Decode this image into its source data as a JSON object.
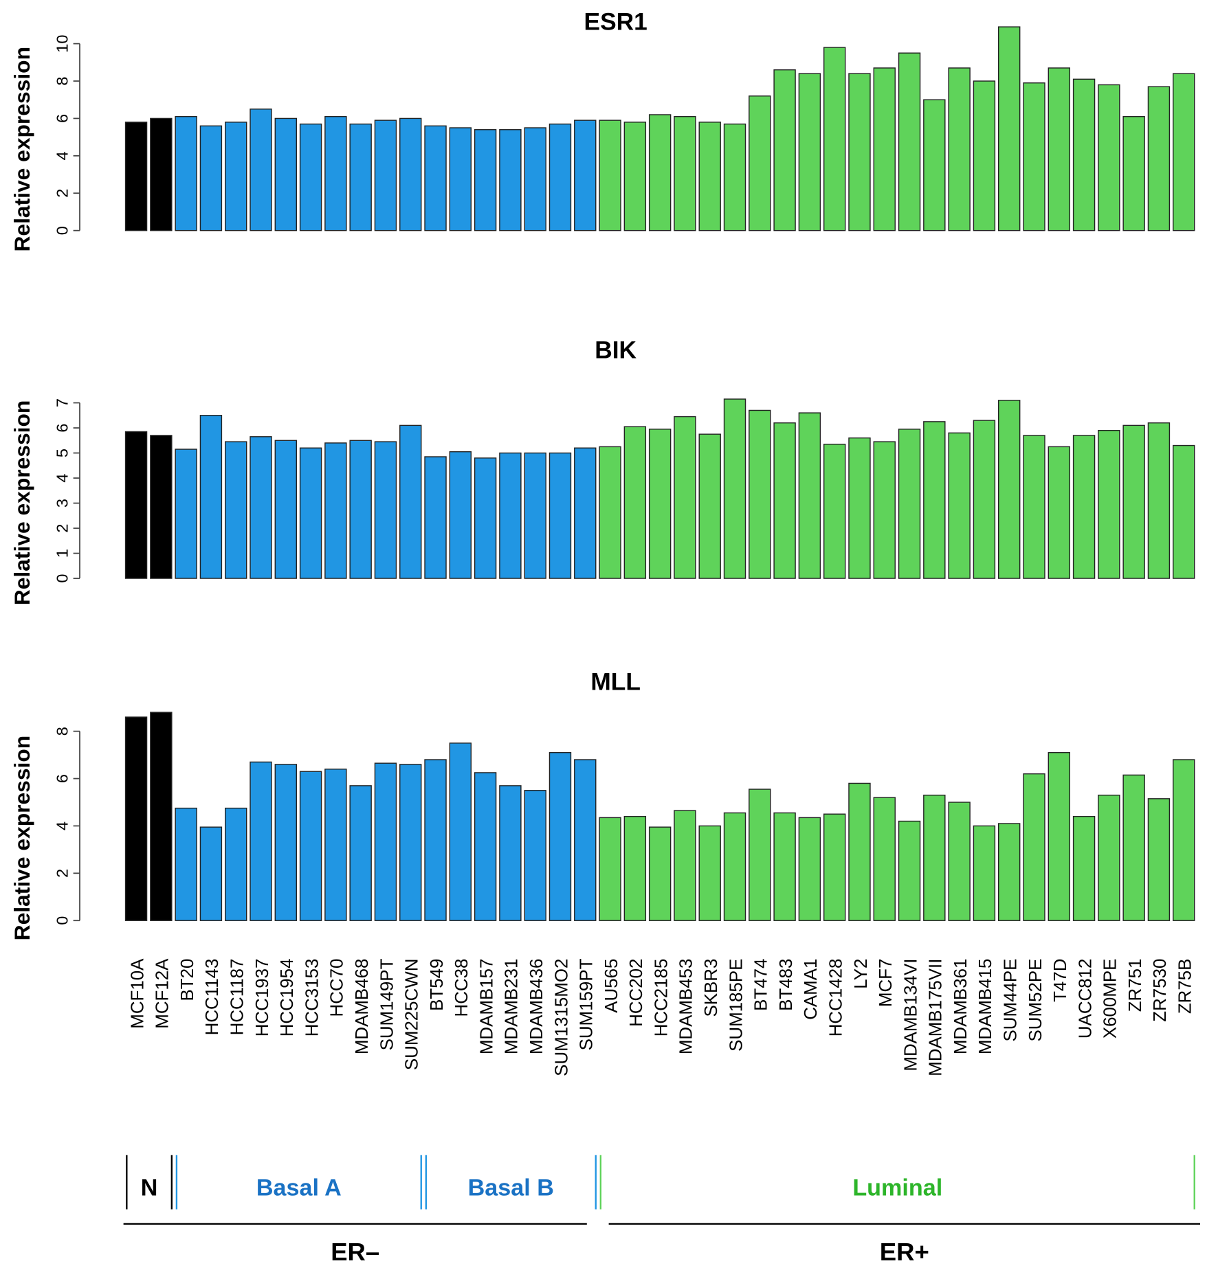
{
  "chart_data": {
    "type": "bar",
    "ylabel": "Relative expression",
    "categories": [
      "MCF10A",
      "MCF12A",
      "BT20",
      "HCC1143",
      "HCC1187",
      "HCC1937",
      "HCC1954",
      "HCC3153",
      "HCC70",
      "MDAMB468",
      "SUM149PT",
      "SUM225CWN",
      "BT549",
      "HCC38",
      "MDAMB157",
      "MDAMB231",
      "MDAMB436",
      "SUM1315MO2",
      "SUM159PT",
      "AU565",
      "HCC202",
      "HCC2185",
      "MDAMB453",
      "SKBR3",
      "SUM185PE",
      "BT474",
      "BT483",
      "CAMA1",
      "HCC1428",
      "LY2",
      "MCF7",
      "MDAMB134VI",
      "MDAMB175VII",
      "MDAMB361",
      "MDAMB415",
      "SUM44PE",
      "SUM52PE",
      "T47D",
      "UACC812",
      "X600MPE",
      "ZR751",
      "ZR7530",
      "ZR75B"
    ],
    "groups": [
      {
        "name": "N",
        "count": 2,
        "color": "#000000"
      },
      {
        "name": "Basal A",
        "count": 10,
        "color": "#2196e3"
      },
      {
        "name": "Basal B",
        "count": 7,
        "color": "#2196e3"
      },
      {
        "name": "Luminal",
        "count": 24,
        "color": "#5fd35a"
      }
    ],
    "label_colors": {
      "N": "#000000",
      "Basal A": "#1a72c4",
      "Basal B": "#1a72c4",
      "Luminal": "#2db52a"
    },
    "er_groups": [
      {
        "name": "ER–",
        "count": 19
      },
      {
        "name": "ER+",
        "count": 24
      }
    ],
    "panels": [
      {
        "title": "ESR1",
        "ylim": [
          0,
          10
        ],
        "yticks": [
          0,
          2,
          4,
          6,
          8,
          10
        ],
        "values": [
          5.8,
          6.0,
          6.1,
          5.6,
          5.8,
          6.5,
          6.0,
          5.7,
          6.1,
          5.7,
          5.9,
          6.0,
          5.6,
          5.5,
          5.4,
          5.4,
          5.5,
          5.7,
          5.9,
          5.9,
          5.8,
          6.2,
          6.1,
          5.8,
          5.7,
          7.2,
          8.6,
          8.4,
          9.8,
          8.4,
          8.7,
          9.5,
          7.0,
          8.7,
          8.0,
          10.9,
          7.9,
          8.7,
          8.1,
          7.8,
          6.1,
          7.7,
          8.4
        ]
      },
      {
        "title": "BIK",
        "ylim": [
          0,
          7
        ],
        "yticks": [
          0,
          1,
          2,
          3,
          4,
          5,
          6,
          7
        ],
        "values": [
          5.85,
          5.7,
          5.15,
          6.5,
          5.45,
          5.65,
          5.5,
          5.2,
          5.4,
          5.5,
          5.45,
          6.1,
          4.85,
          5.05,
          4.8,
          5.0,
          5.0,
          5.0,
          5.2,
          5.25,
          6.05,
          5.95,
          6.45,
          5.75,
          7.15,
          6.7,
          6.2,
          6.6,
          5.35,
          5.6,
          5.45,
          5.95,
          6.25,
          5.8,
          6.3,
          7.1,
          5.7,
          5.25,
          5.7,
          5.9,
          6.1,
          6.2,
          5.3
        ]
      },
      {
        "title": "MLL",
        "ylim": [
          0,
          8
        ],
        "yticks": [
          0,
          2,
          4,
          6,
          8
        ],
        "values": [
          8.6,
          8.8,
          4.75,
          3.95,
          4.75,
          6.7,
          6.6,
          6.3,
          6.4,
          5.7,
          6.65,
          6.6,
          6.8,
          7.5,
          6.25,
          5.7,
          5.5,
          7.1,
          6.8,
          4.35,
          4.4,
          3.95,
          4.65,
          4.0,
          4.55,
          5.55,
          4.55,
          4.35,
          4.5,
          5.8,
          5.2,
          4.2,
          5.3,
          5.0,
          4.0,
          4.1,
          6.2,
          7.1,
          4.4,
          5.3,
          6.15,
          5.15,
          6.8
        ]
      }
    ]
  }
}
